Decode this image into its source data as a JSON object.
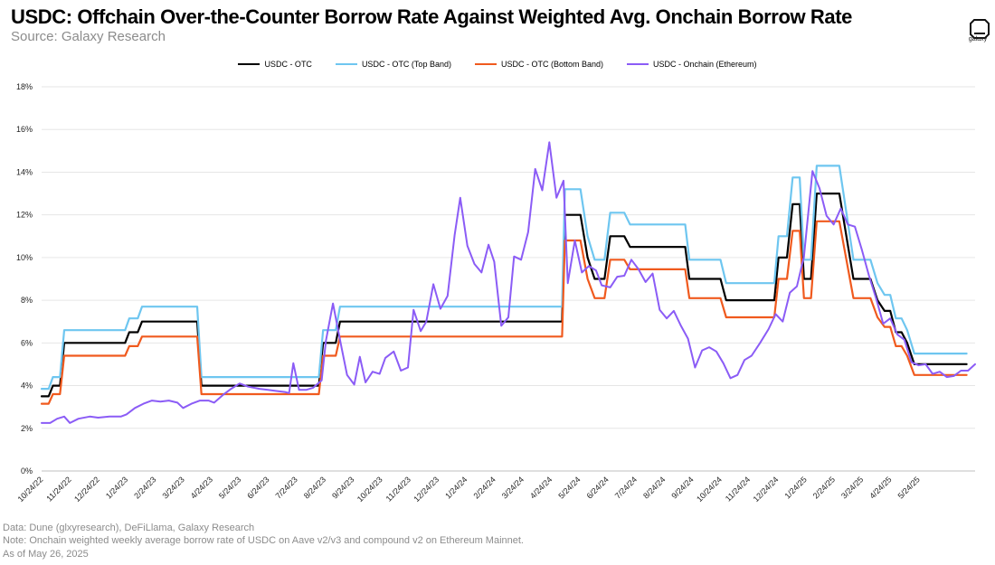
{
  "title": "USDC: Offchain Over-the-Counter Borrow Rate Against Weighted Avg. Onchain Borrow Rate",
  "subtitle": "Source: Galaxy Research",
  "logo_text": "galaxy",
  "footer": {
    "line1": "Data: Dune (glxyresearch), DeFiLlama, Galaxy Research",
    "line2": "Note: Onchain weighted weekly average borrow rate of USDC on Aave v2/v3 and compound v2 on Ethereum Mainnet.",
    "line3": "As of May 26, 2025"
  },
  "chart_data": {
    "type": "line",
    "x_tick_labels": [
      "10/24/22",
      "11/24/22",
      "12/24/22",
      "1/24/23",
      "2/24/23",
      "3/24/23",
      "4/24/23",
      "5/24/23",
      "6/24/23",
      "7/24/23",
      "8/24/23",
      "9/24/23",
      "10/24/23",
      "11/24/23",
      "12/24/23",
      "1/24/24",
      "2/24/24",
      "3/24/24",
      "4/24/24",
      "5/24/24",
      "6/24/24",
      "7/24/24",
      "8/24/24",
      "9/24/24",
      "10/24/24",
      "11/24/24",
      "12/24/24",
      "1/24/25",
      "2/24/25",
      "3/24/25",
      "4/24/25",
      "5/24/25"
    ],
    "y_tick_labels": [
      "0%",
      "2%",
      "4%",
      "6%",
      "8%",
      "10%",
      "12%",
      "14%",
      "16%",
      "18%"
    ],
    "ylim": [
      0,
      18
    ],
    "grid": true,
    "legend_position": "top",
    "series": [
      {
        "name": "USDC - OTC",
        "color": "#000000",
        "points": [
          [
            0,
            3.5
          ],
          [
            0.25,
            3.5
          ],
          [
            0.4,
            4.0
          ],
          [
            0.65,
            4.0
          ],
          [
            0.8,
            6.0
          ],
          [
            2.95,
            6.0
          ],
          [
            3.1,
            6.5
          ],
          [
            3.4,
            6.5
          ],
          [
            3.55,
            7.0
          ],
          [
            5.5,
            7.0
          ],
          [
            5.65,
            4.0
          ],
          [
            9.8,
            4.0
          ],
          [
            9.95,
            6.0
          ],
          [
            10.4,
            6.0
          ],
          [
            10.55,
            7.0
          ],
          [
            18.4,
            7.0
          ],
          [
            18.5,
            12.0
          ],
          [
            19.05,
            12.0
          ],
          [
            19.3,
            10.0
          ],
          [
            19.55,
            9.0
          ],
          [
            19.9,
            9.0
          ],
          [
            20.1,
            11.0
          ],
          [
            20.6,
            11.0
          ],
          [
            20.8,
            10.5
          ],
          [
            22.75,
            10.5
          ],
          [
            22.9,
            9.0
          ],
          [
            24.0,
            9.0
          ],
          [
            24.2,
            8.0
          ],
          [
            25.9,
            8.0
          ],
          [
            26.05,
            10.0
          ],
          [
            26.35,
            10.0
          ],
          [
            26.55,
            12.5
          ],
          [
            26.8,
            12.5
          ],
          [
            26.95,
            9.0
          ],
          [
            27.2,
            9.0
          ],
          [
            27.4,
            13.0
          ],
          [
            28.2,
            13.0
          ],
          [
            28.45,
            11.0
          ],
          [
            28.7,
            9.0
          ],
          [
            29.3,
            9.0
          ],
          [
            29.55,
            8.0
          ],
          [
            29.8,
            7.5
          ],
          [
            30.0,
            7.5
          ],
          [
            30.2,
            6.5
          ],
          [
            30.4,
            6.5
          ],
          [
            30.6,
            6.0
          ],
          [
            30.85,
            5.0
          ],
          [
            32.7,
            5.0
          ]
        ]
      },
      {
        "name": "USDC - OTC (Top Band)",
        "color": "#6ec6f0",
        "points": [
          [
            0,
            3.85
          ],
          [
            0.25,
            3.85
          ],
          [
            0.4,
            4.4
          ],
          [
            0.65,
            4.4
          ],
          [
            0.8,
            6.6
          ],
          [
            2.95,
            6.6
          ],
          [
            3.1,
            7.15
          ],
          [
            3.4,
            7.15
          ],
          [
            3.55,
            7.7
          ],
          [
            5.5,
            7.7
          ],
          [
            5.65,
            4.4
          ],
          [
            9.8,
            4.4
          ],
          [
            9.95,
            6.6
          ],
          [
            10.4,
            6.6
          ],
          [
            10.55,
            7.7
          ],
          [
            18.4,
            7.7
          ],
          [
            18.5,
            13.2
          ],
          [
            19.05,
            13.2
          ],
          [
            19.3,
            11.0
          ],
          [
            19.55,
            9.9
          ],
          [
            19.9,
            9.9
          ],
          [
            20.1,
            12.1
          ],
          [
            20.6,
            12.1
          ],
          [
            20.8,
            11.55
          ],
          [
            22.75,
            11.55
          ],
          [
            22.9,
            9.9
          ],
          [
            24.0,
            9.9
          ],
          [
            24.2,
            8.8
          ],
          [
            25.9,
            8.8
          ],
          [
            26.05,
            11.0
          ],
          [
            26.35,
            11.0
          ],
          [
            26.55,
            13.75
          ],
          [
            26.8,
            13.75
          ],
          [
            26.95,
            9.9
          ],
          [
            27.2,
            9.9
          ],
          [
            27.4,
            14.3
          ],
          [
            28.2,
            14.3
          ],
          [
            28.45,
            12.1
          ],
          [
            28.7,
            9.9
          ],
          [
            29.3,
            9.9
          ],
          [
            29.55,
            8.8
          ],
          [
            29.8,
            8.25
          ],
          [
            30.0,
            8.25
          ],
          [
            30.2,
            7.15
          ],
          [
            30.4,
            7.15
          ],
          [
            30.6,
            6.6
          ],
          [
            30.85,
            5.5
          ],
          [
            32.7,
            5.5
          ]
        ]
      },
      {
        "name": "USDC - OTC (Bottom Band)",
        "color": "#f05a1e",
        "points": [
          [
            0,
            3.15
          ],
          [
            0.25,
            3.15
          ],
          [
            0.4,
            3.6
          ],
          [
            0.65,
            3.6
          ],
          [
            0.8,
            5.4
          ],
          [
            2.95,
            5.4
          ],
          [
            3.1,
            5.85
          ],
          [
            3.4,
            5.85
          ],
          [
            3.55,
            6.3
          ],
          [
            5.5,
            6.3
          ],
          [
            5.65,
            3.6
          ],
          [
            9.8,
            3.6
          ],
          [
            9.95,
            5.4
          ],
          [
            10.4,
            5.4
          ],
          [
            10.55,
            6.3
          ],
          [
            18.4,
            6.3
          ],
          [
            18.5,
            10.8
          ],
          [
            19.05,
            10.8
          ],
          [
            19.3,
            9.0
          ],
          [
            19.55,
            8.1
          ],
          [
            19.9,
            8.1
          ],
          [
            20.1,
            9.9
          ],
          [
            20.6,
            9.9
          ],
          [
            20.8,
            9.45
          ],
          [
            22.75,
            9.45
          ],
          [
            22.9,
            8.1
          ],
          [
            24.0,
            8.1
          ],
          [
            24.2,
            7.2
          ],
          [
            25.9,
            7.2
          ],
          [
            26.05,
            9.0
          ],
          [
            26.35,
            9.0
          ],
          [
            26.55,
            11.25
          ],
          [
            26.8,
            11.25
          ],
          [
            26.95,
            8.1
          ],
          [
            27.2,
            8.1
          ],
          [
            27.4,
            11.7
          ],
          [
            28.2,
            11.7
          ],
          [
            28.45,
            9.9
          ],
          [
            28.7,
            8.1
          ],
          [
            29.3,
            8.1
          ],
          [
            29.55,
            7.2
          ],
          [
            29.8,
            6.75
          ],
          [
            30.0,
            6.75
          ],
          [
            30.2,
            5.85
          ],
          [
            30.4,
            5.85
          ],
          [
            30.6,
            5.4
          ],
          [
            30.85,
            4.5
          ],
          [
            32.7,
            4.5
          ]
        ]
      },
      {
        "name": "USDC - Onchain (Ethereum)",
        "color": "#8b5cf6",
        "points": [
          [
            0,
            2.25
          ],
          [
            0.3,
            2.25
          ],
          [
            0.55,
            2.45
          ],
          [
            0.8,
            2.55
          ],
          [
            1.0,
            2.25
          ],
          [
            1.3,
            2.45
          ],
          [
            1.7,
            2.55
          ],
          [
            2.0,
            2.5
          ],
          [
            2.4,
            2.55
          ],
          [
            2.8,
            2.55
          ],
          [
            3.0,
            2.65
          ],
          [
            3.3,
            2.95
          ],
          [
            3.6,
            3.15
          ],
          [
            3.9,
            3.3
          ],
          [
            4.2,
            3.25
          ],
          [
            4.5,
            3.3
          ],
          [
            4.8,
            3.2
          ],
          [
            5.0,
            2.95
          ],
          [
            5.3,
            3.15
          ],
          [
            5.6,
            3.3
          ],
          [
            5.9,
            3.3
          ],
          [
            6.1,
            3.2
          ],
          [
            6.4,
            3.55
          ],
          [
            6.7,
            3.85
          ],
          [
            7.0,
            4.1
          ],
          [
            7.3,
            3.95
          ],
          [
            7.7,
            3.85
          ],
          [
            8.0,
            3.8
          ],
          [
            8.3,
            3.75
          ],
          [
            8.6,
            3.7
          ],
          [
            8.75,
            3.65
          ],
          [
            8.9,
            5.05
          ],
          [
            9.1,
            3.8
          ],
          [
            9.35,
            3.8
          ],
          [
            9.6,
            3.9
          ],
          [
            9.9,
            4.25
          ],
          [
            10.05,
            6.1
          ],
          [
            10.3,
            7.85
          ],
          [
            10.6,
            5.8
          ],
          [
            10.8,
            4.5
          ],
          [
            11.05,
            4.05
          ],
          [
            11.25,
            5.35
          ],
          [
            11.45,
            4.15
          ],
          [
            11.7,
            4.65
          ],
          [
            11.95,
            4.55
          ],
          [
            12.15,
            5.3
          ],
          [
            12.45,
            5.6
          ],
          [
            12.7,
            4.7
          ],
          [
            12.95,
            4.85
          ],
          [
            13.15,
            7.55
          ],
          [
            13.4,
            6.55
          ],
          [
            13.6,
            7.0
          ],
          [
            13.85,
            8.75
          ],
          [
            14.1,
            7.6
          ],
          [
            14.35,
            8.2
          ],
          [
            14.6,
            11.05
          ],
          [
            14.8,
            12.8
          ],
          [
            15.05,
            10.55
          ],
          [
            15.3,
            9.7
          ],
          [
            15.55,
            9.3
          ],
          [
            15.8,
            10.6
          ],
          [
            16.0,
            9.8
          ],
          [
            16.25,
            6.8
          ],
          [
            16.5,
            7.2
          ],
          [
            16.7,
            10.05
          ],
          [
            16.95,
            9.9
          ],
          [
            17.2,
            11.2
          ],
          [
            17.45,
            14.15
          ],
          [
            17.7,
            13.15
          ],
          [
            17.95,
            15.4
          ],
          [
            18.2,
            12.8
          ],
          [
            18.45,
            13.6
          ],
          [
            18.6,
            8.8
          ],
          [
            18.85,
            10.8
          ],
          [
            19.1,
            9.3
          ],
          [
            19.35,
            9.6
          ],
          [
            19.6,
            9.4
          ],
          [
            19.8,
            8.7
          ],
          [
            20.1,
            8.6
          ],
          [
            20.35,
            9.1
          ],
          [
            20.6,
            9.15
          ],
          [
            20.85,
            9.9
          ],
          [
            21.1,
            9.45
          ],
          [
            21.35,
            8.85
          ],
          [
            21.6,
            9.25
          ],
          [
            21.85,
            7.55
          ],
          [
            22.1,
            7.15
          ],
          [
            22.35,
            7.5
          ],
          [
            22.6,
            6.8
          ],
          [
            22.85,
            6.2
          ],
          [
            23.1,
            4.85
          ],
          [
            23.35,
            5.65
          ],
          [
            23.6,
            5.8
          ],
          [
            23.85,
            5.6
          ],
          [
            24.1,
            5.05
          ],
          [
            24.35,
            4.35
          ],
          [
            24.6,
            4.5
          ],
          [
            24.85,
            5.2
          ],
          [
            25.1,
            5.4
          ],
          [
            25.4,
            6.0
          ],
          [
            25.7,
            6.65
          ],
          [
            25.95,
            7.35
          ],
          [
            26.2,
            7.0
          ],
          [
            26.45,
            8.35
          ],
          [
            26.7,
            8.65
          ],
          [
            26.95,
            10.05
          ],
          [
            27.25,
            14.05
          ],
          [
            27.5,
            13.25
          ],
          [
            27.75,
            11.95
          ],
          [
            28.0,
            11.55
          ],
          [
            28.25,
            12.3
          ],
          [
            28.5,
            11.55
          ],
          [
            28.75,
            11.45
          ],
          [
            29.0,
            10.35
          ],
          [
            29.25,
            9.15
          ],
          [
            29.5,
            8.1
          ],
          [
            29.75,
            6.9
          ],
          [
            30.0,
            7.15
          ],
          [
            30.25,
            6.4
          ],
          [
            30.5,
            6.15
          ],
          [
            30.75,
            5.1
          ],
          [
            31.0,
            4.95
          ],
          [
            31.25,
            5.0
          ],
          [
            31.5,
            4.55
          ],
          [
            31.75,
            4.65
          ],
          [
            32.0,
            4.4
          ],
          [
            32.25,
            4.45
          ],
          [
            32.5,
            4.7
          ],
          [
            32.75,
            4.7
          ],
          [
            33.0,
            5.0
          ]
        ]
      }
    ]
  }
}
